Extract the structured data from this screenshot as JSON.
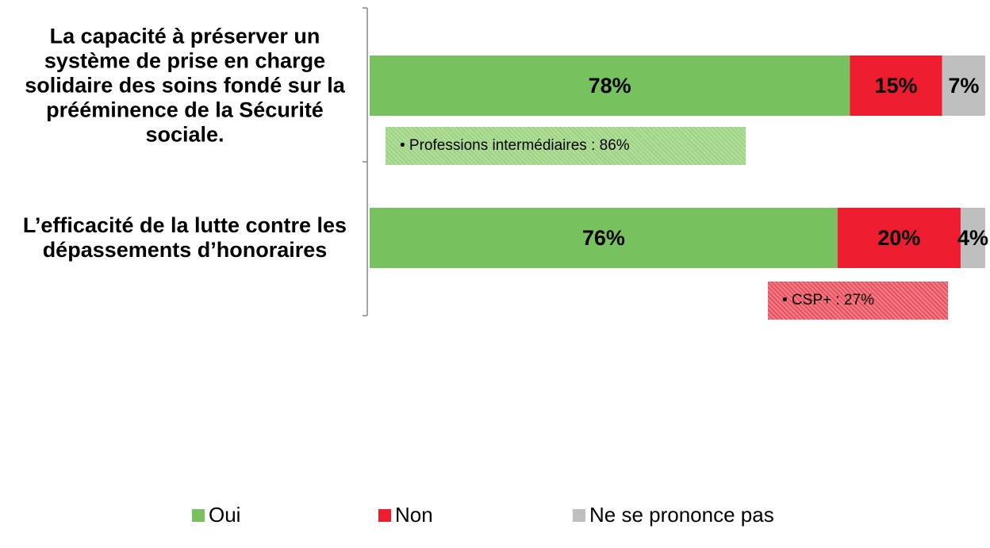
{
  "chart_data": {
    "type": "stacked_barh",
    "categories": [
      "La capacité à préserver un système de prise en charge solidaire des soins fondé sur la prééminence de la Sécurité sociale.",
      "L’efficacité de la lutte contre les dépassements d’honoraires"
    ],
    "series": [
      {
        "name": "Oui",
        "color": "#77c15e",
        "values": [
          78,
          76
        ],
        "value_labels": [
          "78%",
          "76%"
        ]
      },
      {
        "name": "Non",
        "color": "#ed1c2e",
        "values": [
          15,
          20
        ],
        "value_labels": [
          "15%",
          "20%"
        ]
      },
      {
        "name": "Ne se prononce pas",
        "color": "#bfbfbf",
        "values": [
          7,
          4
        ],
        "value_labels": [
          "7%",
          "4%"
        ]
      }
    ],
    "xlim": [
      0,
      100
    ],
    "annotations": [
      "• Professions intermédiaires : 86%",
      "• CSP+ : 27%"
    ],
    "legend": "bottom"
  }
}
